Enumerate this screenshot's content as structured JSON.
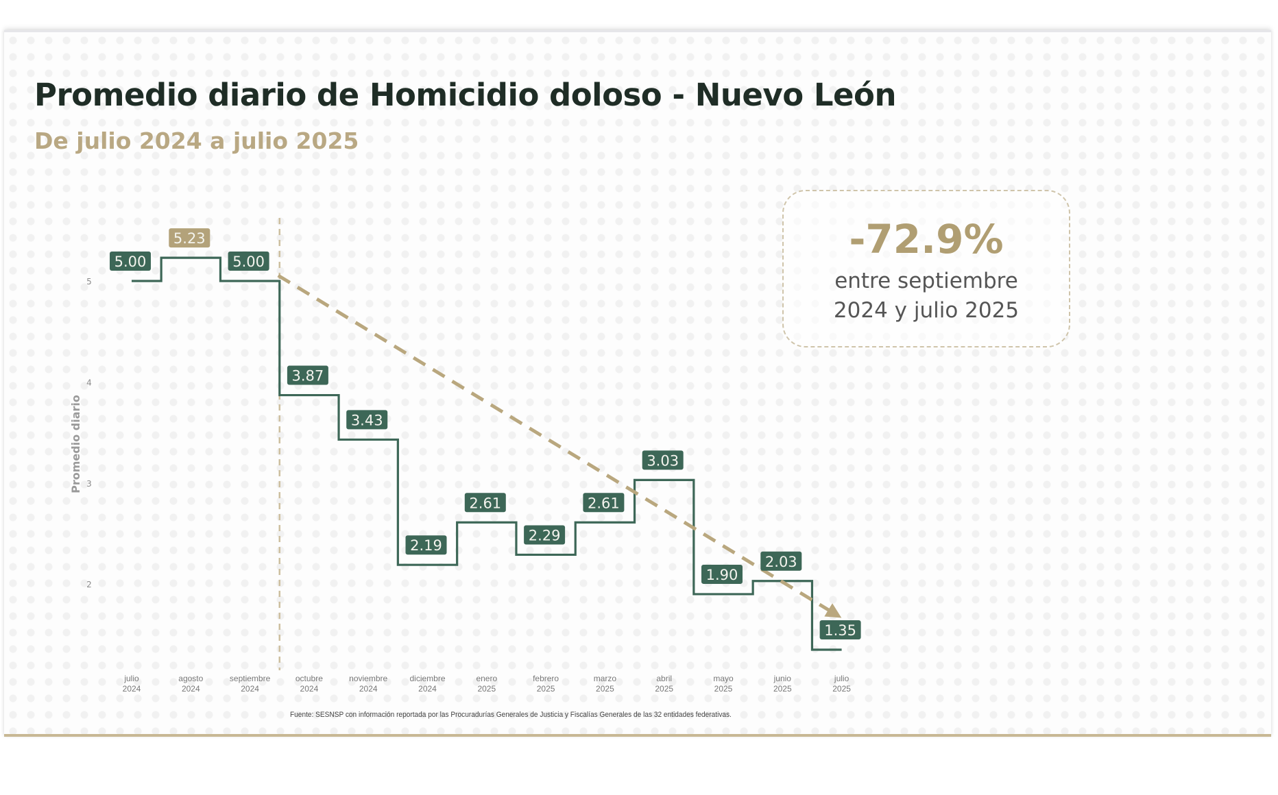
{
  "header": {
    "title": "Promedio diario de Homicidio doloso - Nuevo León",
    "subtitle": "De julio 2024 a julio 2025"
  },
  "callout": {
    "value": "-72.9%",
    "line1": "entre septiembre",
    "line2": "2024 y julio 2025"
  },
  "source": "Fuente: SESNSP con información reportada por las Procuradurías Generales de Justicia y Fiscalías Generales de las 32 entidades federativas.",
  "colors": {
    "series": "#3d6757",
    "highlight": "#b3a27a",
    "trend": "#b9a77e",
    "title": "#1f2d26",
    "subtitle": "#b9a883"
  },
  "chart_data": {
    "type": "line",
    "style": "step",
    "title": "Promedio diario de Homicidio doloso - Nuevo León",
    "subtitle": "De julio 2024 a julio 2025",
    "xlabel": "",
    "ylabel": "Promedio diario",
    "categories": [
      [
        "julio",
        "2024"
      ],
      [
        "agosto",
        "2024"
      ],
      [
        "septiembre",
        "2024"
      ],
      [
        "octubre",
        "2024"
      ],
      [
        "noviembre",
        "2024"
      ],
      [
        "diciembre",
        "2024"
      ],
      [
        "enero",
        "2025"
      ],
      [
        "febrero",
        "2025"
      ],
      [
        "marzo",
        "2025"
      ],
      [
        "abril",
        "2025"
      ],
      [
        "mayo",
        "2025"
      ],
      [
        "junio",
        "2025"
      ],
      [
        "julio",
        "2025"
      ]
    ],
    "series": [
      {
        "name": "Promedio diario",
        "values": [
          5.0,
          5.23,
          5.0,
          3.87,
          3.43,
          2.19,
          2.61,
          2.29,
          2.61,
          3.03,
          1.9,
          2.03,
          1.35
        ],
        "labels": [
          "5.00",
          "5.23",
          "5.00",
          "3.87",
          "3.43",
          "2.19",
          "2.61",
          "2.29",
          "2.61",
          "3.03",
          "1.90",
          "2.03",
          "1.35"
        ],
        "highlight_index": 1
      }
    ],
    "yticks": [
      2,
      3,
      4,
      5
    ],
    "ylim": [
      1.2,
      5.5
    ],
    "grid": false,
    "legend": "none",
    "annotations": {
      "reference_line": {
        "between": [
          "septiembre 2024",
          "octubre 2024"
        ],
        "style": "dashed-vertical"
      },
      "trend_arrow": {
        "from": [
          "septiembre 2024",
          5.0
        ],
        "to": [
          "julio 2025",
          1.35
        ],
        "style": "dashed-arrow"
      },
      "change_label": "-72.9% entre septiembre 2024 y julio 2025"
    }
  }
}
